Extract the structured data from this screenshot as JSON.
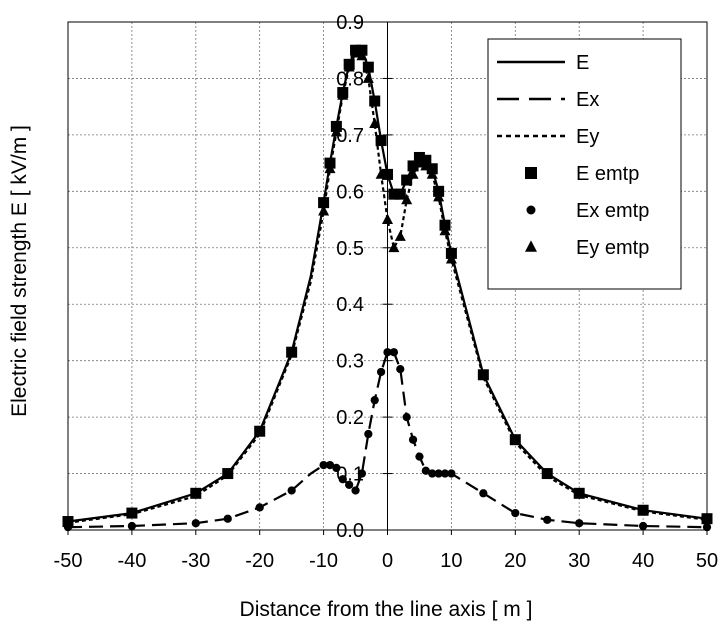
{
  "chart_data": {
    "type": "line",
    "title": "",
    "xlabel": "Distance from the line axis [ m ]",
    "ylabel": "Electric field strength E [ kV/m ]",
    "xlim": [
      -50,
      50
    ],
    "ylim": [
      0,
      0.9
    ],
    "x_ticks": [
      -50,
      -40,
      -30,
      -20,
      -10,
      0,
      10,
      20,
      30,
      40,
      50
    ],
    "x_tick_labels": [
      "-50",
      "-40",
      "-30",
      "-20",
      "-10",
      "0",
      "10",
      "20",
      "30",
      "40",
      "50"
    ],
    "y_ticks": [
      0.0,
      0.1,
      0.2,
      0.3,
      0.4,
      0.5,
      0.6,
      0.7,
      0.8,
      0.9
    ],
    "y_tick_labels": [
      "0.0",
      "0.1",
      "0.2",
      "0.3",
      "0.4",
      "0.5",
      "0.6",
      "0.7",
      "0.8",
      "0.9"
    ],
    "grid": true,
    "legend_position": "top-right",
    "x": [
      -50,
      -40,
      -30,
      -25,
      -20,
      -15,
      -12,
      -10,
      -9,
      -8,
      -7,
      -6,
      -5,
      -4,
      -3,
      -2,
      -1,
      0,
      1,
      2,
      3,
      4,
      5,
      6,
      7,
      8,
      9,
      10,
      15,
      20,
      25,
      30,
      40,
      50
    ],
    "series": [
      {
        "name": "E",
        "style": "solid",
        "values": [
          0.015,
          0.03,
          0.065,
          0.1,
          0.175,
          0.315,
          0.45,
          0.58,
          0.65,
          0.715,
          0.775,
          0.825,
          0.85,
          0.85,
          0.82,
          0.76,
          0.69,
          0.63,
          0.595,
          0.595,
          0.62,
          0.645,
          0.66,
          0.655,
          0.64,
          0.6,
          0.54,
          0.49,
          0.275,
          0.16,
          0.1,
          0.065,
          0.035,
          0.02
        ]
      },
      {
        "name": "Ex",
        "style": "dashed",
        "values": [
          0.005,
          0.007,
          0.012,
          0.02,
          0.04,
          0.07,
          0.1,
          0.115,
          0.115,
          0.11,
          0.09,
          0.08,
          0.07,
          0.1,
          0.17,
          0.23,
          0.28,
          0.315,
          0.315,
          0.285,
          0.2,
          0.16,
          0.13,
          0.105,
          0.1,
          0.1,
          0.1,
          0.1,
          0.065,
          0.03,
          0.018,
          0.012,
          0.007,
          0.005
        ]
      },
      {
        "name": "Ey",
        "style": "dotted",
        "values": [
          0.013,
          0.028,
          0.06,
          0.097,
          0.17,
          0.31,
          0.44,
          0.565,
          0.64,
          0.705,
          0.77,
          0.82,
          0.845,
          0.84,
          0.8,
          0.72,
          0.63,
          0.55,
          0.5,
          0.52,
          0.585,
          0.63,
          0.65,
          0.645,
          0.63,
          0.59,
          0.53,
          0.48,
          0.27,
          0.155,
          0.095,
          0.062,
          0.033,
          0.018
        ]
      }
    ],
    "marker_series": [
      {
        "name": "E emtp",
        "marker": "square",
        "x": [
          -50,
          -40,
          -30,
          -25,
          -20,
          -15,
          -10,
          -9,
          -8,
          -7,
          -6,
          -5,
          -4,
          -3,
          -2,
          -1,
          0,
          1,
          2,
          3,
          4,
          5,
          6,
          7,
          8,
          9,
          10,
          15,
          20,
          25,
          30,
          40,
          50
        ],
        "y": [
          0.015,
          0.03,
          0.065,
          0.1,
          0.175,
          0.315,
          0.58,
          0.65,
          0.715,
          0.775,
          0.825,
          0.85,
          0.85,
          0.82,
          0.76,
          0.69,
          0.63,
          0.595,
          0.595,
          0.62,
          0.645,
          0.66,
          0.655,
          0.64,
          0.6,
          0.54,
          0.49,
          0.275,
          0.16,
          0.1,
          0.065,
          0.035,
          0.02
        ]
      },
      {
        "name": "Ex emtp",
        "marker": "circle",
        "x": [
          -50,
          -40,
          -30,
          -25,
          -20,
          -15,
          -10,
          -9,
          -8,
          -7,
          -6,
          -5,
          -4,
          -3,
          -2,
          -1,
          0,
          1,
          2,
          3,
          4,
          5,
          6,
          7,
          8,
          9,
          10,
          15,
          20,
          25,
          30,
          40,
          50
        ],
        "y": [
          0.005,
          0.007,
          0.012,
          0.02,
          0.04,
          0.07,
          0.115,
          0.115,
          0.11,
          0.09,
          0.08,
          0.07,
          0.1,
          0.17,
          0.23,
          0.28,
          0.315,
          0.315,
          0.285,
          0.2,
          0.16,
          0.13,
          0.105,
          0.1,
          0.1,
          0.1,
          0.1,
          0.065,
          0.03,
          0.018,
          0.012,
          0.007,
          0.005
        ]
      },
      {
        "name": "Ey emtp",
        "marker": "triangle",
        "x": [
          -10,
          -9,
          -8,
          -7,
          -6,
          -5,
          -4,
          -3,
          -2,
          -1,
          0,
          1,
          2,
          3,
          4,
          5,
          6,
          7,
          8,
          9,
          10
        ],
        "y": [
          0.565,
          0.64,
          0.705,
          0.77,
          0.82,
          0.845,
          0.84,
          0.8,
          0.72,
          0.63,
          0.55,
          0.5,
          0.52,
          0.585,
          0.63,
          0.65,
          0.645,
          0.63,
          0.59,
          0.53,
          0.48
        ]
      }
    ]
  }
}
